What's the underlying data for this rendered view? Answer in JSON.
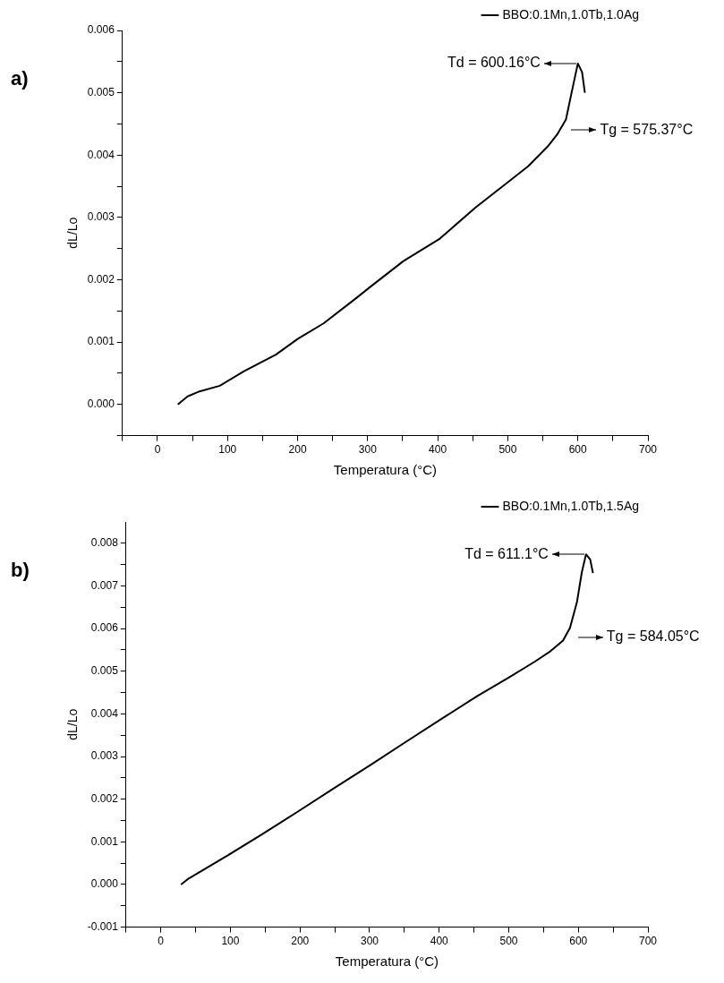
{
  "chart_data": [
    {
      "type": "line",
      "title": "a)",
      "xlabel": "Temperatura (°C)",
      "ylabel": "dL/Lo",
      "legend": "top right",
      "grid": false,
      "marker": "none",
      "line_style": "solid",
      "xlim": [
        -50,
        700
      ],
      "xticks": [
        {
          "value": -50,
          "label": null
        },
        0,
        {
          "value": 50,
          "label": null
        },
        100,
        {
          "value": 150,
          "label": null
        },
        200,
        {
          "value": 250,
          "label": null
        },
        300,
        {
          "value": 350,
          "label": null
        },
        400,
        {
          "value": 450,
          "label": null
        },
        500,
        {
          "value": 550,
          "label": null
        },
        600,
        {
          "value": 650,
          "label": null
        },
        700
      ],
      "ylim": [
        -0.0005,
        0.006
      ],
      "yticks": [
        {
          "value": -0.0005,
          "label": null
        },
        {
          "value": 0,
          "label": "0.000"
        },
        {
          "value": 0.0005,
          "label": null
        },
        0.001,
        {
          "value": 0.0015,
          "label": null
        },
        0.002,
        {
          "value": 0.0025,
          "label": null
        },
        0.003,
        {
          "value": 0.0035,
          "label": null
        },
        0.004,
        {
          "value": 0.0045,
          "label": null
        },
        0.005,
        {
          "value": 0.0055,
          "label": null
        },
        0.006
      ],
      "series": [
        {
          "name": "BBO:0.1Mn,1.0Tb,1.0Ag",
          "color": "#000000",
          "x": [
            29,
            43,
            60,
            89,
            123,
            169,
            200,
            237,
            283,
            303,
            351,
            403,
            454,
            503,
            529,
            557,
            571,
            583,
            591,
            600,
            606,
            610
          ],
          "values": [
            0,
            0.00013,
            0.00021,
            0.0003,
            0.00053,
            0.0008,
            0.00105,
            0.0013,
            0.0017,
            0.00188,
            0.0023,
            0.00266,
            0.00316,
            0.00359,
            0.00382,
            0.00414,
            0.00434,
            0.00457,
            0.005,
            0.00547,
            0.00533,
            0.005
          ]
        }
      ],
      "annotations": [
        {
          "text": "Td = 600.16°C",
          "x": 600.16,
          "y": 0.00547
        },
        {
          "text": "Tg = 575.37°C",
          "x": 575.37,
          "y": 0.0044
        }
      ]
    },
    {
      "type": "line",
      "title": "b)",
      "xlabel": "Temperatura (°C)",
      "ylabel": "dL/Lo",
      "legend": "top right",
      "grid": false,
      "marker": "none",
      "line_style": "solid",
      "xlim": [
        -50,
        700
      ],
      "xticks": [
        {
          "value": -50,
          "label": null
        },
        0,
        {
          "value": 50,
          "label": null
        },
        100,
        {
          "value": 150,
          "label": null
        },
        200,
        {
          "value": 250,
          "label": null
        },
        300,
        {
          "value": 350,
          "label": null
        },
        400,
        {
          "value": 450,
          "label": null
        },
        500,
        {
          "value": 550,
          "label": null
        },
        600,
        {
          "value": 650,
          "label": null
        },
        700
      ],
      "ylim": [
        -0.001,
        0.0085
      ],
      "yticks": [
        -0.001,
        {
          "value": -0.0005,
          "label": null
        },
        {
          "value": 0,
          "label": "0.000"
        },
        {
          "value": 0.0005,
          "label": null
        },
        0.001,
        {
          "value": 0.0015,
          "label": null
        },
        0.002,
        {
          "value": 0.0025,
          "label": null
        },
        0.003,
        {
          "value": 0.0035,
          "label": null
        },
        0.004,
        {
          "value": 0.0045,
          "label": null
        },
        0.005,
        {
          "value": 0.0055,
          "label": null
        },
        0.006,
        {
          "value": 0.0065,
          "label": null
        },
        0.007,
        {
          "value": 0.0075,
          "label": null
        },
        0.008
      ],
      "series": [
        {
          "name": "BBO:0.1Mn,1.0Tb,1.5Ag",
          "color": "#000000",
          "x": [
            29,
            40,
            92,
            145,
            174,
            198,
            250,
            303,
            350,
            402,
            455,
            502,
            537,
            560,
            578,
            588,
            598,
            605,
            611,
            617,
            621
          ],
          "values": [
            0,
            0.00014,
            0.00064,
            0.00117,
            0.00147,
            0.00172,
            0.00227,
            0.00282,
            0.00332,
            0.00387,
            0.00442,
            0.00487,
            0.00522,
            0.00547,
            0.00572,
            0.00602,
            0.00662,
            0.00732,
            0.00774,
            0.00762,
            0.0073
          ]
        }
      ],
      "annotations": [
        {
          "text": "Td = 611.1°C",
          "x": 611.1,
          "y": 0.00774
        },
        {
          "text": "Tg = 584.05°C",
          "x": 584.05,
          "y": 0.0058
        }
      ]
    }
  ]
}
